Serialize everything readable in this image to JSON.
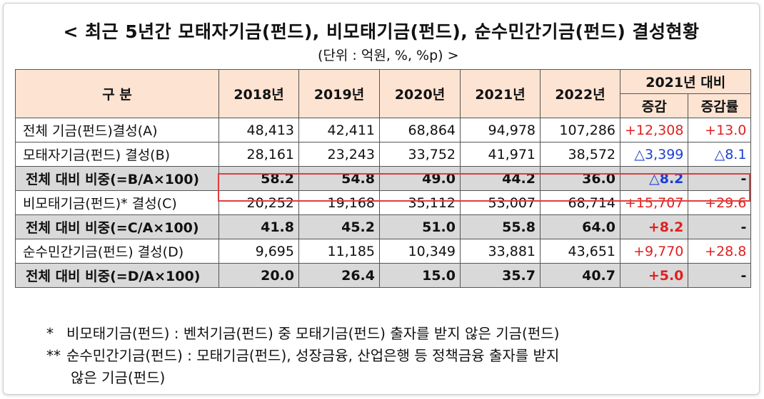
{
  "title": "< 최근 5년간 모태자기금(펀드), 비모태기금(펀드), 순수민간기금(펀드) 결성현황",
  "unit": "(단위 : 억원, %, %p)  >",
  "table": {
    "header": {
      "category": "구  분",
      "years": [
        "2018년",
        "2019년",
        "2020년",
        "2021년",
        "2022년"
      ],
      "compare_group": "2021년 대비",
      "change": "증감",
      "change_rate": "증감률"
    },
    "rows": [
      {
        "label": "전체 기금(펀드)결성(A)",
        "values": [
          "48,413",
          "42,411",
          "68,864",
          "94,978",
          "107,286"
        ],
        "change": "+12,308",
        "rate": "+13.0",
        "change_color": "red",
        "rate_color": "red",
        "bold": false
      },
      {
        "label": "모태자기금(펀드) 결성(B)",
        "values": [
          "28,161",
          "23,243",
          "33,752",
          "41,971",
          "38,572"
        ],
        "change": "△3,399",
        "rate": "△8.1",
        "change_color": "blue",
        "rate_color": "blue",
        "bold": false
      },
      {
        "label": "전체 대비 비중(=B/A×100)",
        "values": [
          "58.2",
          "54.8",
          "49.0",
          "44.2",
          "36.0"
        ],
        "change": "△8.2",
        "rate": "-",
        "change_color": "blue",
        "rate_color": "black",
        "bold": true
      },
      {
        "label": "비모태기금(펀드)* 결성(C)",
        "values": [
          "20,252",
          "19,168",
          "35,112",
          "53,007",
          "68,714"
        ],
        "change": "+15,707",
        "rate": "+29.6",
        "change_color": "red",
        "rate_color": "red",
        "bold": false
      },
      {
        "label": "전체 대비 비중(=C/A×100)",
        "values": [
          "41.8",
          "45.2",
          "51.0",
          "55.8",
          "64.0"
        ],
        "change": "+8.2",
        "rate": "-",
        "change_color": "red",
        "rate_color": "black",
        "bold": true
      },
      {
        "label": "순수민간기금(펀드) 결성(D)",
        "values": [
          "9,695",
          "11,185",
          "10,349",
          "33,881",
          "43,651"
        ],
        "change": "+9,770",
        "rate": "+28.8",
        "change_color": "red",
        "rate_color": "red",
        "bold": false
      },
      {
        "label": "전체 대비 비중(=D/A×100)",
        "values": [
          "20.0",
          "26.4",
          "15.0",
          "35.7",
          "40.7"
        ],
        "change": "+5.0",
        "rate": "-",
        "change_color": "red",
        "rate_color": "black",
        "bold": true
      }
    ]
  },
  "notes": [
    {
      "mark": "*",
      "text": "비모태기금(펀드) : 벤처기금(펀드) 중 모태기금(펀드) 출자를 받지 않은 기금(펀드)"
    },
    {
      "mark": "**",
      "text": "순수민간기금(펀드) : 모태기금(펀드), 성장금융, 산업은행 등 정책금융 출자를 받지"
    },
    {
      "mark": "",
      "text": "않은 기금(펀드)"
    }
  ],
  "colors": {
    "header_bg": "#fde3d2",
    "ratio_row_bg": "#d9d9d9",
    "increase": "#e02020",
    "decrease": "#1a3fd0",
    "highlight": "#e23c3c"
  }
}
